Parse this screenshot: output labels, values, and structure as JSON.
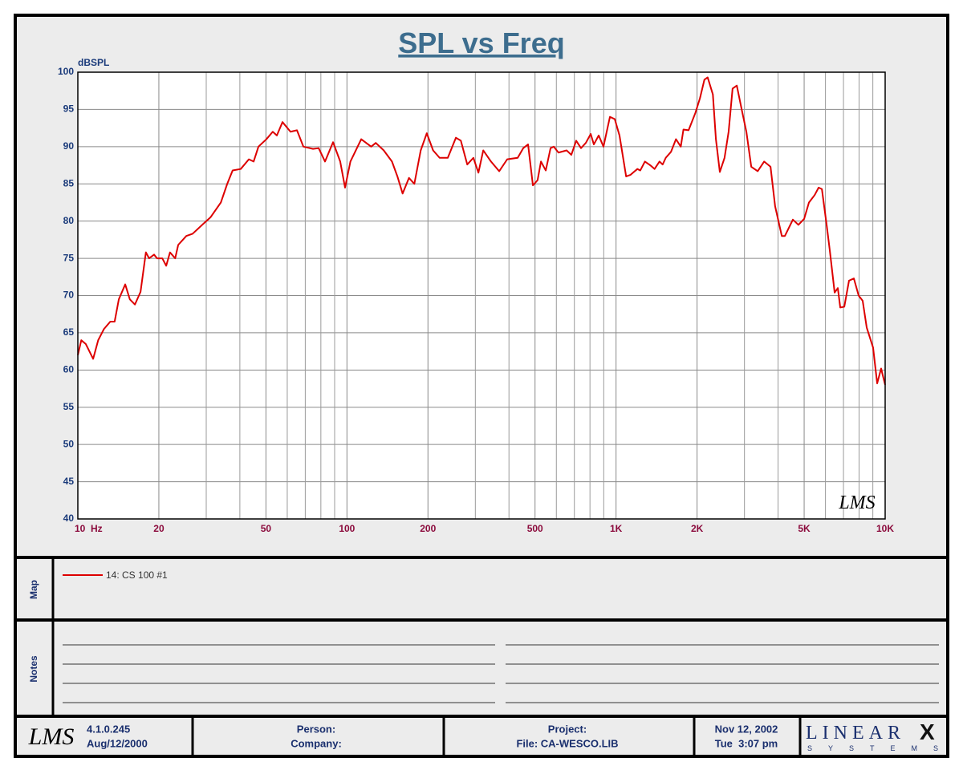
{
  "chart_data": {
    "type": "line",
    "title": "SPL vs Freq",
    "y_label": "dBSPL",
    "watermark": "LMS",
    "xscale": "log",
    "grid": true,
    "xlim": [
      10,
      10000
    ],
    "ylim": [
      40,
      100
    ],
    "xticks": [
      {
        "value": 10,
        "label": "10  Hz"
      },
      20,
      50,
      100,
      200,
      500,
      {
        "value": 1000,
        "label": "1K"
      },
      {
        "value": 2000,
        "label": "2K"
      },
      {
        "value": 5000,
        "label": "5K"
      },
      {
        "value": 10000,
        "label": "10K"
      }
    ],
    "xminor": [
      30,
      40,
      60,
      70,
      80,
      90,
      300,
      400,
      600,
      700,
      800,
      900,
      3000,
      4000,
      6000,
      7000,
      8000,
      9000
    ],
    "yticks": [
      40,
      45,
      50,
      55,
      60,
      65,
      70,
      75,
      80,
      85,
      90,
      95,
      100
    ],
    "x": [
      10,
      10.3,
      10.7,
      11.4,
      11.9,
      12.5,
      13.2,
      13.7,
      14.2,
      15.0,
      15.6,
      16.3,
      17.1,
      17.9,
      18.4,
      19.2,
      19.7,
      20.6,
      21.3,
      22.0,
      23.0,
      23.6,
      25.3,
      26.7,
      29.6,
      31.1,
      34.0,
      35.9,
      37.6,
      40.3,
      43.2,
      45.0,
      46.9,
      50.2,
      53.0,
      54.9,
      57.6,
      61.7,
      65.2,
      68.9,
      74.8,
      78.5,
      82.9,
      88.8,
      94.4,
      98.4,
      103,
      113,
      123,
      128,
      137,
      147,
      154,
      161,
      170,
      178,
      188,
      198,
      209,
      221,
      237,
      254,
      265,
      280,
      295,
      308,
      321,
      343,
      368,
      394,
      431,
      452,
      471,
      491,
      511,
      526,
      548,
      571,
      587,
      611,
      655,
      682,
      711,
      741,
      772,
      805,
      827,
      862,
      898,
      949,
      989,
      1030,
      1090,
      1130,
      1200,
      1230,
      1280,
      1340,
      1390,
      1450,
      1490,
      1530,
      1600,
      1670,
      1740,
      1780,
      1860,
      1970,
      2050,
      2130,
      2190,
      2290,
      2350,
      2430,
      2530,
      2620,
      2710,
      2810,
      2930,
      3050,
      3180,
      3360,
      3550,
      3750,
      3900,
      4130,
      4240,
      4540,
      4760,
      5000,
      5210,
      5470,
      5660,
      5820,
      6060,
      6230,
      6490,
      6670,
      6810,
      7050,
      7340,
      7650,
      7970,
      8250,
      8540,
      9020,
      9340,
      9660,
      10000
    ],
    "series": [
      {
        "name": "14: CS 100 #1",
        "color": "#dd0000",
        "values": [
          62,
          64,
          63.5,
          61.5,
          64,
          65.5,
          66.5,
          66.5,
          69.5,
          71.5,
          69.5,
          68.8,
          70.5,
          75.8,
          75,
          75.5,
          75,
          75,
          74,
          75.8,
          75,
          76.8,
          78,
          78.3,
          79.8,
          80.5,
          82.5,
          85,
          86.8,
          87,
          88.3,
          88,
          90,
          91,
          92,
          91.5,
          93.3,
          92,
          92.2,
          90,
          89.7,
          89.8,
          88,
          90.6,
          88,
          84.5,
          88,
          91,
          90,
          90.5,
          89.5,
          88,
          86,
          83.7,
          85.8,
          85,
          89.5,
          91.8,
          89.5,
          88.5,
          88.5,
          91.2,
          90.8,
          87.6,
          88.5,
          86.5,
          89.5,
          88,
          86.7,
          88.3,
          88.5,
          89.8,
          90.3,
          84.8,
          85.5,
          88,
          86.8,
          89.8,
          90,
          89.2,
          89.5,
          88.9,
          90.8,
          89.8,
          90.5,
          91.7,
          90.3,
          91.5,
          90,
          94,
          93.7,
          91.5,
          86,
          86.2,
          87,
          86.8,
          88,
          87.5,
          87,
          88,
          87.6,
          88.5,
          89.3,
          91,
          90,
          92.3,
          92.2,
          94.5,
          96.5,
          99,
          99.3,
          97,
          91,
          86.6,
          88.5,
          92,
          97.8,
          98.2,
          95,
          92,
          87.3,
          86.7,
          88,
          87.3,
          82,
          78,
          78,
          80.2,
          79.5,
          80.3,
          82.5,
          83.5,
          84.5,
          84.3,
          79.5,
          76,
          70.4,
          71,
          68.4,
          68.5,
          72,
          72.3,
          70,
          69.3,
          65.7,
          63,
          58.2,
          60.2,
          58
        ]
      }
    ]
  },
  "map": {
    "label": "Map"
  },
  "notes": {
    "label": "Notes"
  },
  "footer": {
    "logo": "LMS",
    "version": "4.1.0.245",
    "build_date": "Aug/12/2000",
    "person": "Person:",
    "company": "Company:",
    "project": "Project:",
    "file": "File: CA-WESCO.LIB",
    "date": "Nov 12, 2002",
    "time": "Tue  3:07 pm",
    "brand": "LINEAR",
    "brand_x": "X",
    "brand_sub": "SYSTEMS"
  }
}
